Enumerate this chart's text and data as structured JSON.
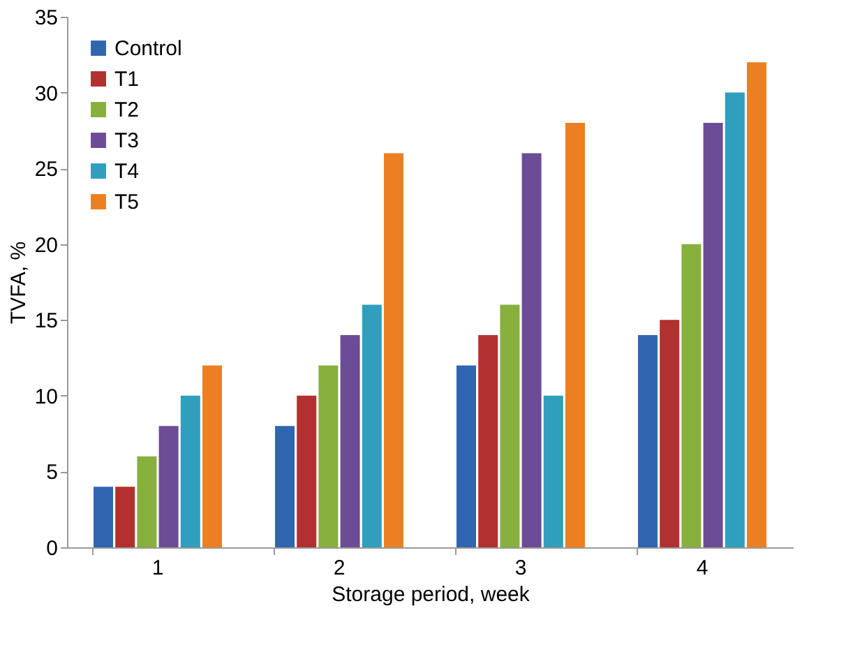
{
  "chart_data": {
    "type": "bar",
    "xlabel": "Storage period, week",
    "ylabel": "TVFA, %",
    "categories": [
      "1",
      "2",
      "3",
      "4"
    ],
    "series": [
      {
        "name": "Control",
        "color": "#3066b0",
        "values": [
          4,
          8,
          12,
          14
        ]
      },
      {
        "name": "T1",
        "color": "#b33030",
        "values": [
          4,
          10,
          14,
          15
        ]
      },
      {
        "name": "T2",
        "color": "#88b03c",
        "values": [
          6,
          12,
          16,
          20
        ]
      },
      {
        "name": "T3",
        "color": "#6c4c97",
        "values": [
          8,
          14,
          26,
          28
        ]
      },
      {
        "name": "T4",
        "color": "#2f9fbd",
        "values": [
          10,
          16,
          10,
          30
        ]
      },
      {
        "name": "T5",
        "color": "#ec7f22",
        "values": [
          12,
          26,
          28,
          32
        ]
      }
    ],
    "ylim": [
      0,
      35
    ],
    "yticks": [
      0,
      5,
      10,
      15,
      20,
      25,
      30,
      35
    ],
    "grid": false,
    "legend": "top left"
  }
}
